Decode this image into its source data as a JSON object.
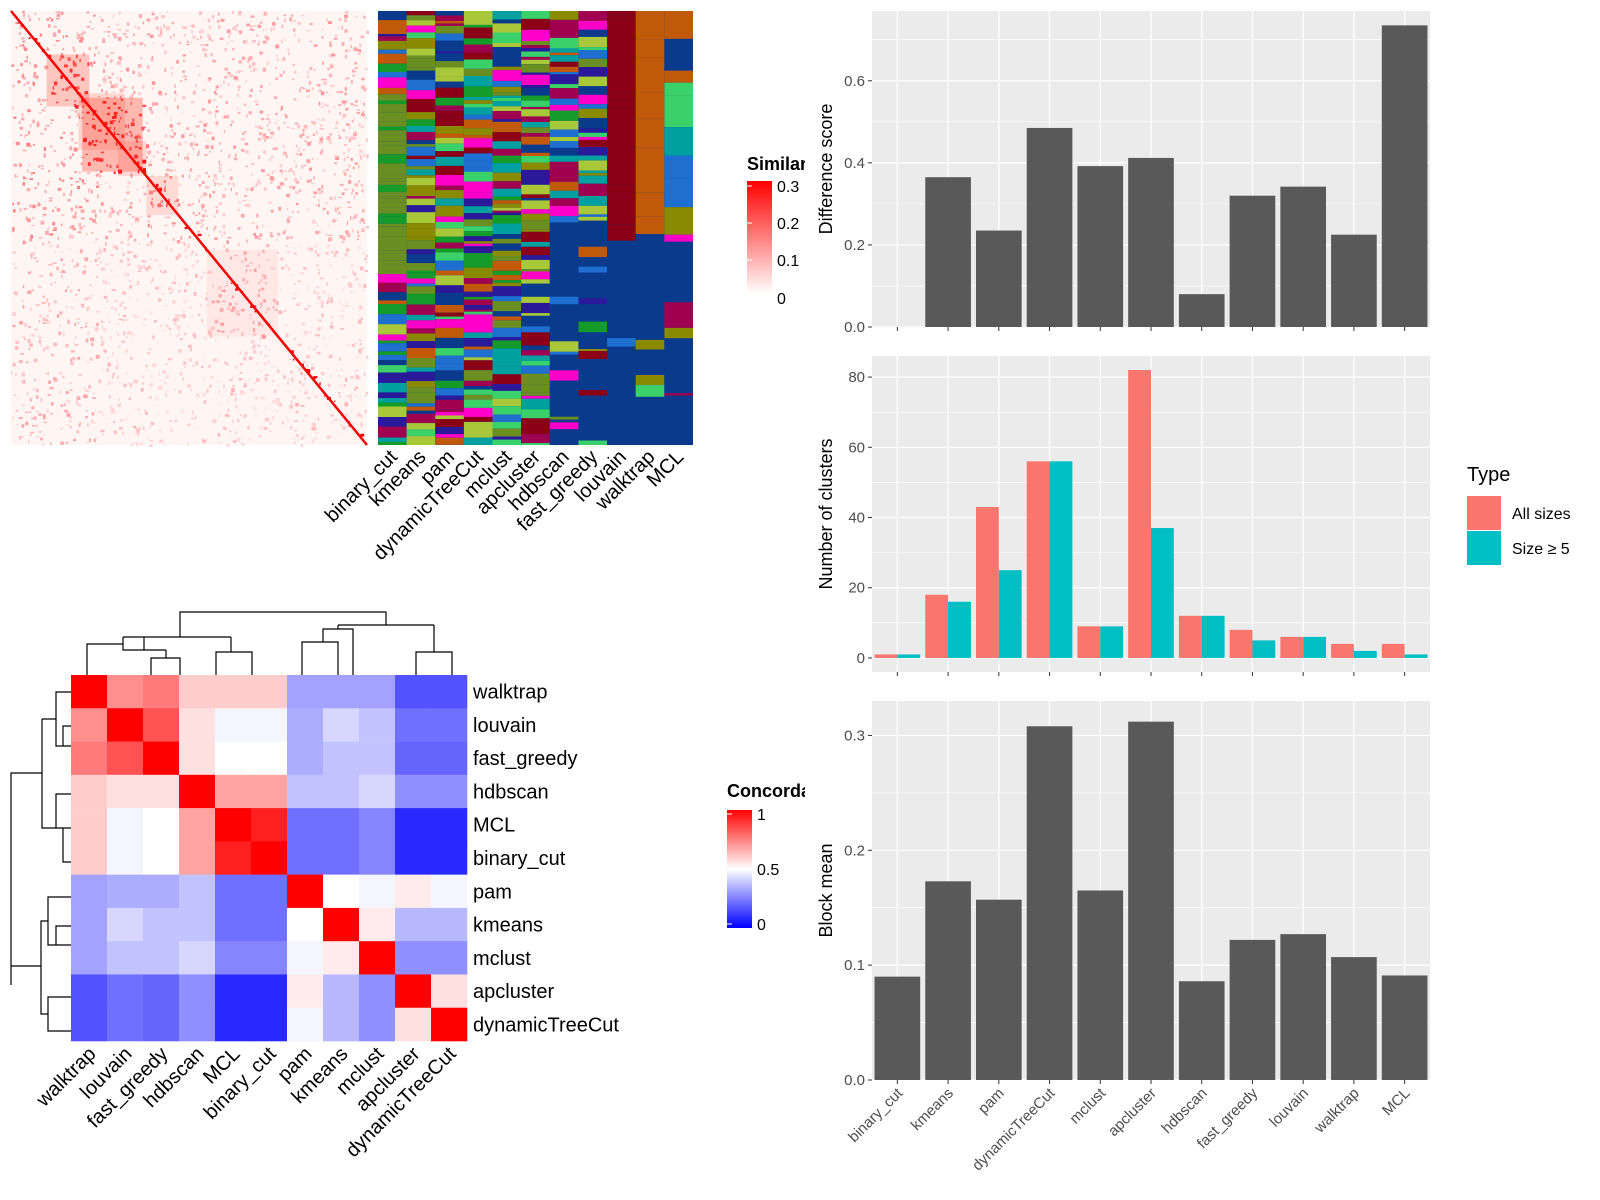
{
  "methods_bar_order": [
    "binary_cut",
    "kmeans",
    "pam",
    "dynamicTreeCut",
    "mclust",
    "apcluster",
    "hdbscan",
    "fast_greedy",
    "louvain",
    "walktrap",
    "MCL"
  ],
  "chart_data": [
    {
      "id": "similarity_heatmap",
      "type": "heatmap",
      "legend": {
        "title": "Similarity",
        "ticks": [
          "0.3",
          "0.2",
          "0.1",
          "0"
        ],
        "colors": [
          "#ffffff",
          "#ff0000"
        ],
        "placement": "right"
      },
      "column_labels": [
        "binary_cut",
        "kmeans",
        "pam",
        "dynamicTreeCut",
        "mclust",
        "apcluster",
        "hdbscan",
        "fast_greedy",
        "louvain",
        "walktrap",
        "MCL"
      ],
      "annotation_colors": [
        "#0a3a8c",
        "#6b8e23",
        "#159b2a",
        "#8b0016",
        "#c05a0a",
        "#ff00c8",
        "#2a1a9a",
        "#a8c83a",
        "#3ad06a",
        "#8a8a00",
        "#1e6fd0",
        "#a00050",
        "#00a0a0"
      ],
      "base_color": "#0a3a8c"
    },
    {
      "id": "concordance_heatmap",
      "type": "heatmap",
      "legend": {
        "title": "Concordance",
        "ticks": [
          "1",
          "0.5",
          "0"
        ],
        "colors": [
          "#0000ff",
          "#ffffff",
          "#ff0000"
        ],
        "placement": "right"
      },
      "labels": [
        "walktrap",
        "louvain",
        "fast_greedy",
        "hdbscan",
        "MCL",
        "binary_cut",
        "pam",
        "kmeans",
        "mclust",
        "apcluster",
        "dynamicTreeCut"
      ],
      "values": [
        [
          1.0,
          0.72,
          0.76,
          0.6,
          0.6,
          0.6,
          0.32,
          0.32,
          0.32,
          0.16,
          0.16
        ],
        [
          0.72,
          1.0,
          0.84,
          0.56,
          0.48,
          0.48,
          0.34,
          0.42,
          0.38,
          0.22,
          0.22
        ],
        [
          0.76,
          0.84,
          1.0,
          0.56,
          0.5,
          0.5,
          0.34,
          0.38,
          0.38,
          0.2,
          0.2
        ],
        [
          0.6,
          0.56,
          0.56,
          1.0,
          0.68,
          0.68,
          0.38,
          0.38,
          0.42,
          0.28,
          0.28
        ],
        [
          0.6,
          0.48,
          0.5,
          0.68,
          1.0,
          0.94,
          0.22,
          0.22,
          0.26,
          0.08,
          0.08
        ],
        [
          0.6,
          0.48,
          0.5,
          0.68,
          0.94,
          1.0,
          0.22,
          0.22,
          0.26,
          0.08,
          0.08
        ],
        [
          0.32,
          0.34,
          0.34,
          0.38,
          0.22,
          0.22,
          1.0,
          0.5,
          0.48,
          0.54,
          0.48
        ],
        [
          0.32,
          0.42,
          0.38,
          0.38,
          0.22,
          0.22,
          0.5,
          1.0,
          0.54,
          0.36,
          0.36
        ],
        [
          0.32,
          0.38,
          0.38,
          0.42,
          0.26,
          0.26,
          0.48,
          0.54,
          1.0,
          0.28,
          0.28
        ],
        [
          0.16,
          0.22,
          0.2,
          0.28,
          0.08,
          0.08,
          0.54,
          0.36,
          0.28,
          1.0,
          0.56
        ],
        [
          0.16,
          0.22,
          0.2,
          0.28,
          0.08,
          0.08,
          0.48,
          0.36,
          0.28,
          0.56,
          1.0
        ]
      ]
    },
    {
      "id": "difference_score",
      "type": "bar",
      "ylabel": "Difference score",
      "categories": [
        "binary_cut",
        "kmeans",
        "pam",
        "dynamicTreeCut",
        "mclust",
        "apcluster",
        "hdbscan",
        "fast_greedy",
        "louvain",
        "walktrap",
        "MCL"
      ],
      "values": [
        0.0,
        0.365,
        0.235,
        0.485,
        0.392,
        0.412,
        0.08,
        0.32,
        0.342,
        0.225,
        0.735
      ],
      "ylim": [
        0,
        0.77
      ],
      "yticks": [
        0.0,
        0.2,
        0.4,
        0.6
      ],
      "ytick_labels": [
        "0.0",
        "0.2",
        "0.4",
        "0.6"
      ],
      "grid": true,
      "bar_color": "#595959"
    },
    {
      "id": "number_of_clusters",
      "type": "bar",
      "ylabel": "Number of clusters",
      "categories": [
        "binary_cut",
        "kmeans",
        "pam",
        "dynamicTreeCut",
        "mclust",
        "apcluster",
        "hdbscan",
        "fast_greedy",
        "louvain",
        "walktrap",
        "MCL"
      ],
      "series": [
        {
          "name": "All sizes",
          "color": "#f8766d",
          "values": [
            1,
            18,
            43,
            56,
            9,
            82,
            12,
            8,
            6,
            4,
            4
          ]
        },
        {
          "name": "Size ≥ 5",
          "color": "#00bfc4",
          "values": [
            1,
            16,
            25,
            56,
            9,
            37,
            12,
            5,
            6,
            2,
            1
          ]
        }
      ],
      "ylim": [
        -4,
        86
      ],
      "yticks": [
        0,
        20,
        40,
        60,
        80
      ],
      "ytick_labels": [
        "0",
        "20",
        "40",
        "60",
        "80"
      ],
      "legend": {
        "title": "Type",
        "placement": "right"
      },
      "grid": true
    },
    {
      "id": "block_mean",
      "type": "bar",
      "ylabel": "Block mean",
      "categories": [
        "binary_cut",
        "kmeans",
        "pam",
        "dynamicTreeCut",
        "mclust",
        "apcluster",
        "hdbscan",
        "fast_greedy",
        "louvain",
        "walktrap",
        "MCL"
      ],
      "values": [
        0.09,
        0.173,
        0.157,
        0.308,
        0.165,
        0.312,
        0.086,
        0.122,
        0.127,
        0.107,
        0.091
      ],
      "ylim": [
        0,
        0.33
      ],
      "yticks": [
        0.0,
        0.1,
        0.2,
        0.3
      ],
      "ytick_labels": [
        "0.0",
        "0.1",
        "0.2",
        "0.3"
      ],
      "grid": true,
      "bar_color": "#595959"
    }
  ]
}
